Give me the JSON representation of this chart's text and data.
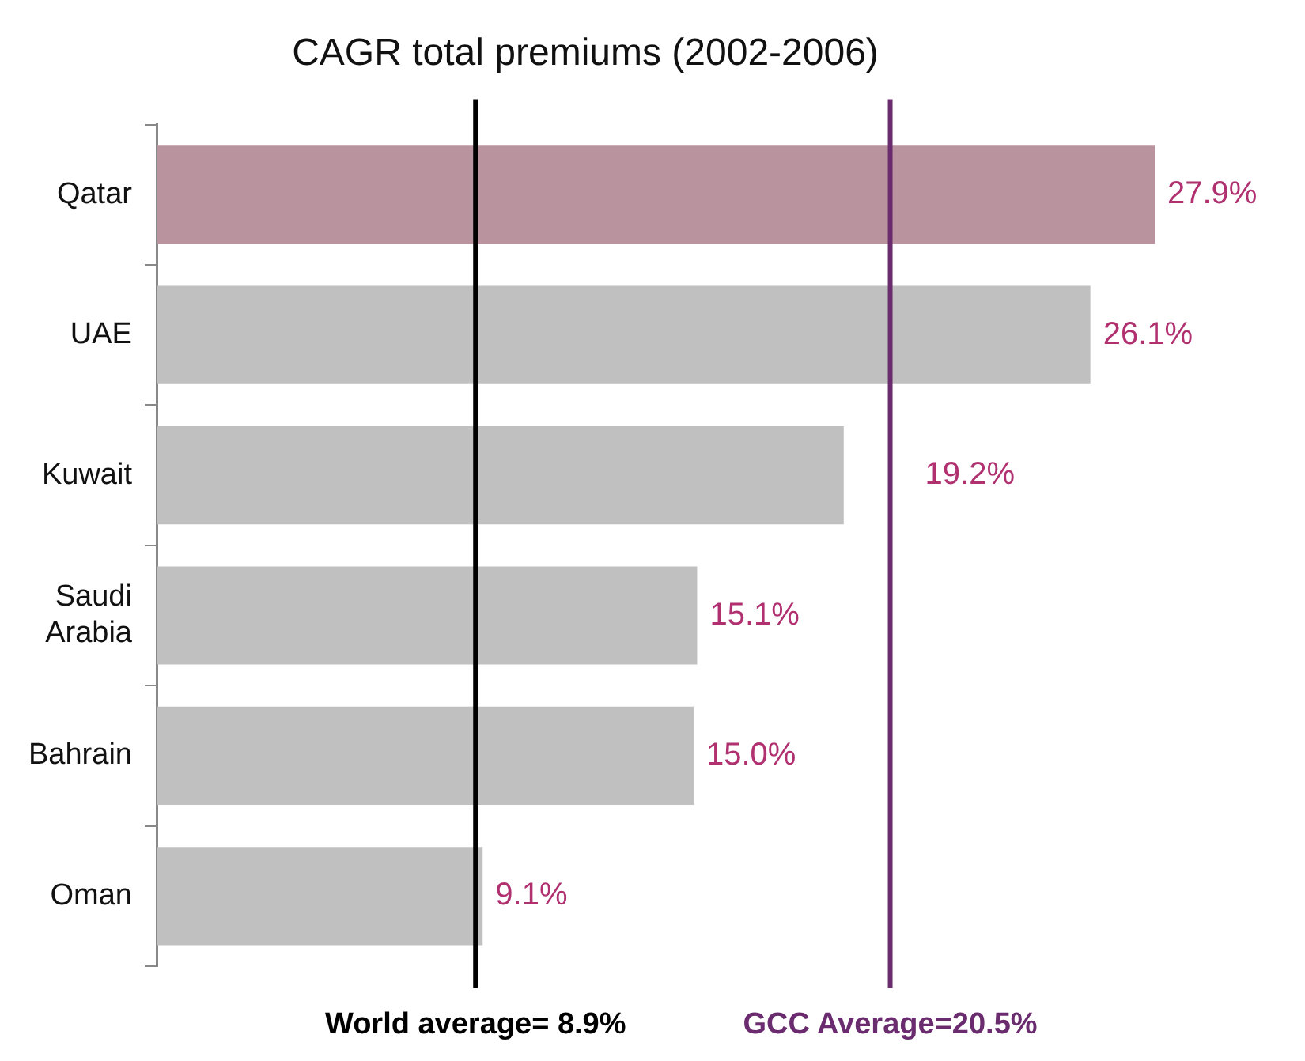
{
  "chart_data": {
    "type": "bar",
    "orientation": "horizontal",
    "title": "CAGR total premiums (2002-2006)",
    "categories": [
      "Qatar",
      "UAE",
      "Kuwait",
      "Saudi Arabia",
      "Bahrain",
      "Oman"
    ],
    "values": [
      27.9,
      26.1,
      19.2,
      15.1,
      15.0,
      9.1
    ],
    "colors": [
      "#b9949f",
      "#c0c0c0",
      "#c0c0c0",
      "#c0c0c0",
      "#c0c0c0",
      "#c0c0c0"
    ],
    "value_labels": [
      "27.9%",
      "26.1%",
      "19.2%",
      "15.1%",
      "15.0%",
      "9.1%"
    ],
    "ref_lines": [
      {
        "axis": "x",
        "value": 8.9,
        "label": "World average= 8.9%",
        "color": "#000000"
      },
      {
        "axis": "x",
        "value": 20.5,
        "label": "GCC Average=20.5%",
        "color": "#6a2c6e"
      }
    ],
    "grid": false,
    "legend": false
  }
}
